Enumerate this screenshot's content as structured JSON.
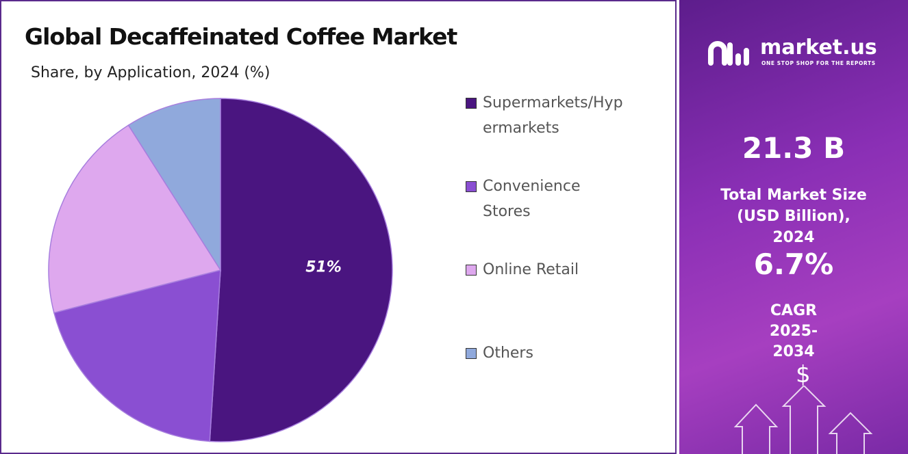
{
  "chart_data": {
    "type": "pie",
    "title": "Global Decaffeinated Coffee Market",
    "subtitle": "Share, by Application, 2024 (%)",
    "categories": [
      "Supermarkets/Hypermarkets",
      "Convenience Stores",
      "Online Retail",
      "Others"
    ],
    "values": [
      51,
      20,
      20,
      9
    ],
    "value_labels": [
      "51%",
      null,
      null,
      null
    ],
    "colors": [
      "#4a1580",
      "#8a4fd2",
      "#dea8ee",
      "#90a9dc"
    ]
  },
  "sidebar": {
    "brand": "market.us",
    "tagline": "ONE STOP SHOP FOR THE REPORTS",
    "market_size": "21.3 B",
    "market_size_label": "Total Market Size (USD Billion), 2024",
    "cagr": "6.7%",
    "cagr_label": "CAGR 2025-2034",
    "icon_symbol": "$"
  }
}
